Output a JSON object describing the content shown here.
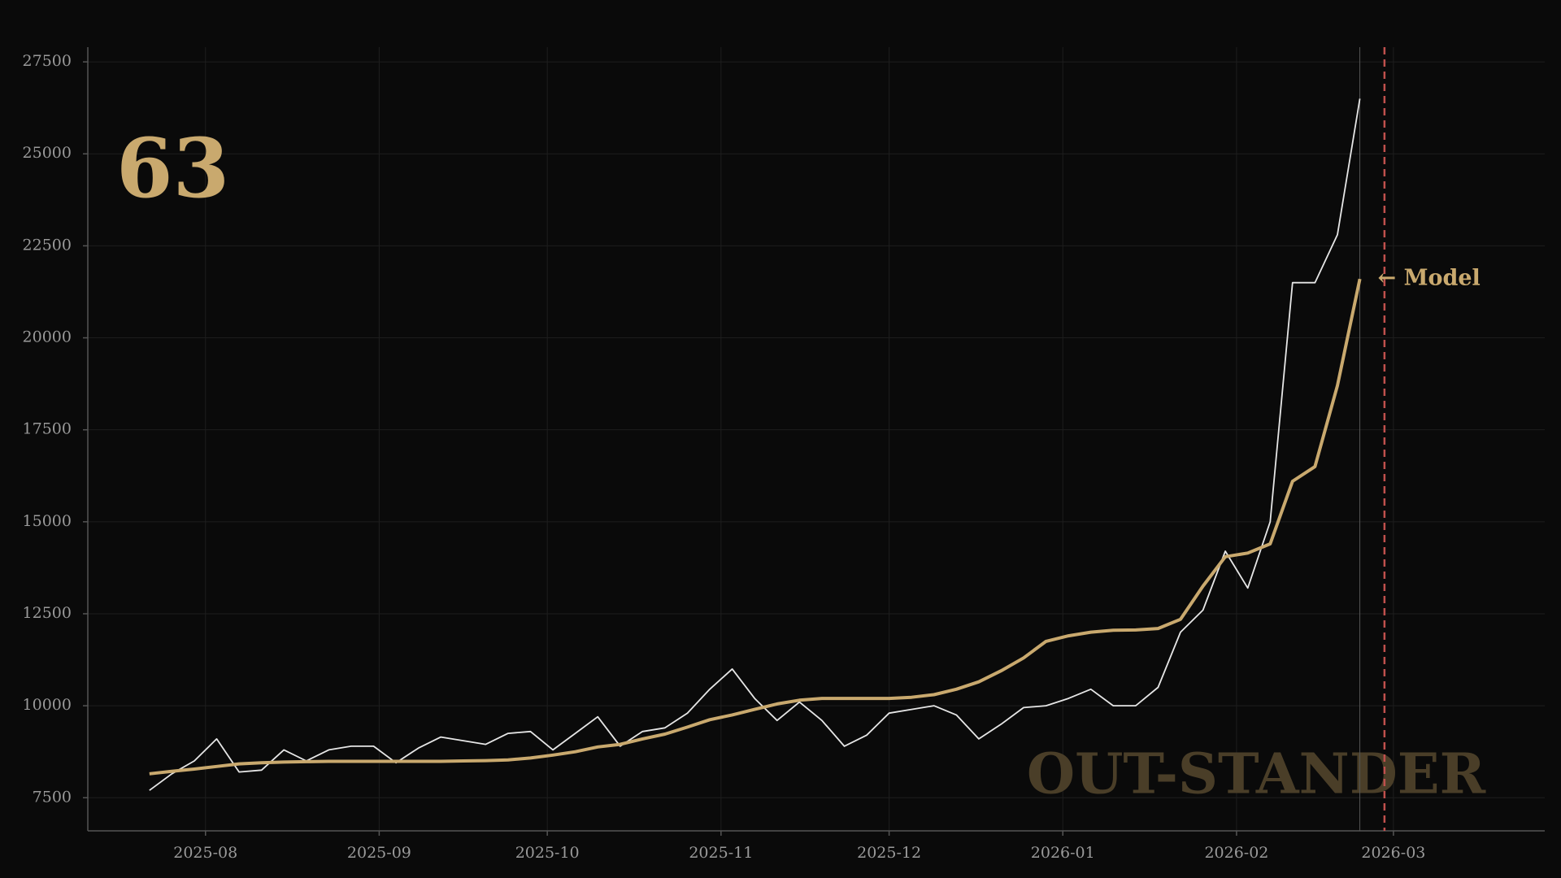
{
  "chart_data": {
    "type": "line",
    "annotations": [
      "63",
      "← Model",
      "OUT-STANDER"
    ],
    "categories": [
      null,
      null,
      null,
      null,
      null,
      null,
      null,
      null,
      null,
      null,
      null,
      null,
      null,
      null,
      null,
      null,
      null,
      null,
      null,
      null,
      null,
      null,
      null,
      null,
      null,
      null,
      null,
      null,
      null,
      null,
      null,
      null,
      null,
      null,
      null,
      null,
      null,
      null,
      null,
      null,
      null,
      null,
      null,
      null,
      null,
      null,
      null,
      null,
      null,
      null,
      null,
      null,
      null,
      null,
      null
    ],
    "series": [
      {
        "color": "#e6e6e6",
        "values": [
          7700,
          8150,
          8500,
          9100,
          8200,
          8250,
          8800,
          8500,
          8800,
          8900,
          8900,
          8450,
          8850,
          9150,
          9050,
          8950,
          9250,
          9300,
          8800,
          9250,
          9700,
          8900,
          9300,
          9400,
          9800,
          10450,
          11000,
          10200,
          9600,
          10100,
          9600,
          8900,
          9200,
          9800,
          9900,
          10000,
          9750,
          9100,
          9500,
          9950,
          10000,
          10200,
          10450,
          10000,
          10000,
          10500,
          12000,
          12600,
          14200,
          13200,
          15000,
          21500,
          21500,
          22800,
          26500
        ]
      },
      {
        "color": "#c9a96e",
        "values": [
          8150,
          8220,
          8280,
          8350,
          8420,
          8450,
          8470,
          8480,
          8490,
          8490,
          8490,
          8490,
          8490,
          8490,
          8500,
          8510,
          8530,
          8580,
          8660,
          8750,
          8880,
          8950,
          9100,
          9230,
          9420,
          9620,
          9750,
          9900,
          10050,
          10150,
          10200,
          10200,
          10200,
          10200,
          10230,
          10300,
          10450,
          10650,
          10950,
          11300,
          11750,
          11900,
          12000,
          12050,
          12060,
          12100,
          12350,
          13250,
          14050,
          14150,
          14400,
          16100,
          16500,
          18700,
          21600
        ]
      }
    ],
    "xlim": [
      -2.75,
      62.25
    ],
    "xticks": [
      {
        "value": 2.5,
        "label": "2025-08"
      },
      {
        "value": 10.25,
        "label": "2025-09"
      },
      {
        "value": 17.75,
        "label": "2025-10"
      },
      {
        "value": 25.5,
        "label": "2025-11"
      },
      {
        "value": 33,
        "label": "2025-12"
      },
      {
        "value": 40.75,
        "label": "2026-01"
      },
      {
        "value": 48.5,
        "label": "2026-02"
      },
      {
        "value": 55.5,
        "label": "2026-03"
      }
    ],
    "ylim": [
      6600,
      27900
    ],
    "yticks": [
      7500,
      10000,
      12500,
      15000,
      17500,
      20000,
      22500,
      25000,
      27500
    ],
    "reference_lines": [
      {
        "value": 55.1,
        "color": "#c0504d"
      }
    ],
    "grid": true
  }
}
